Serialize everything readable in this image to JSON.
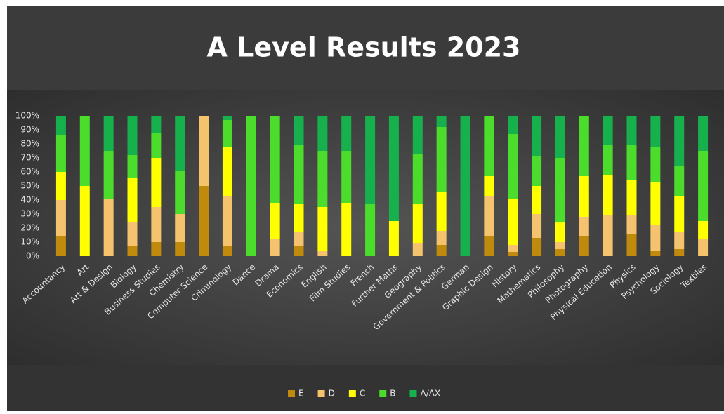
{
  "chart_data": {
    "type": "stacked_bar",
    "title": "A Level Results 2023",
    "categories": [
      "Accountancy",
      "Art",
      "Art & Design",
      "Biology",
      "Business Studies",
      "Chemistry",
      "Computer Science",
      "Criminology",
      "Dance",
      "Drama",
      "Economics",
      "English",
      "Film Studies",
      "French",
      "Further Maths",
      "Geography",
      "Government & Politics",
      "German",
      "Graphic Design",
      "History",
      "Mathematics",
      "Philosophy",
      "Photography",
      "Physical Education",
      "Physics",
      "Psychology",
      "Sociology",
      "Textiles"
    ],
    "series": [
      {
        "name": "E",
        "color": "#c08a0c",
        "values": [
          14,
          0,
          0,
          7,
          10,
          10,
          50,
          7,
          0,
          0,
          7,
          0,
          0,
          0,
          0,
          0,
          8,
          0,
          14,
          3,
          13,
          5,
          14,
          0,
          16,
          4,
          5,
          0
        ]
      },
      {
        "name": "D",
        "color": "#f5c36e",
        "values": [
          26,
          0,
          41,
          17,
          25,
          20,
          50,
          36,
          0,
          12,
          10,
          4,
          0,
          0,
          0,
          9,
          10,
          0,
          29,
          5,
          17,
          5,
          14,
          29,
          13,
          18,
          12,
          12
        ]
      },
      {
        "name": "C",
        "color": "#ffff00",
        "values": [
          20,
          50,
          0,
          32,
          35,
          0,
          0,
          35,
          0,
          26,
          20,
          31,
          38,
          0,
          25,
          28,
          28,
          0,
          14,
          33,
          20,
          14,
          29,
          29,
          25,
          31,
          26,
          13
        ]
      },
      {
        "name": "B",
        "color": "#4cdd2c",
        "values": [
          26,
          50,
          34,
          16,
          18,
          31,
          0,
          19,
          100,
          62,
          42,
          40,
          37,
          37,
          0,
          36,
          46,
          0,
          43,
          46,
          21,
          46,
          43,
          21,
          25,
          25,
          21,
          50
        ]
      },
      {
        "name": "A/AX",
        "color": "#16b04c",
        "values": [
          14,
          0,
          25,
          28,
          12,
          39,
          0,
          3,
          0,
          0,
          21,
          25,
          25,
          63,
          75,
          27,
          8,
          100,
          0,
          13,
          29,
          30,
          0,
          21,
          21,
          22,
          36,
          25
        ]
      }
    ],
    "ylim": [
      0,
      100
    ],
    "yticks": [
      {
        "value": 0,
        "label": "0%"
      },
      {
        "value": 10,
        "label": "10%"
      },
      {
        "value": 20,
        "label": "20%"
      },
      {
        "value": 30,
        "label": "30%"
      },
      {
        "value": 40,
        "label": "40%"
      },
      {
        "value": 50,
        "label": "50%"
      },
      {
        "value": 60,
        "label": "60%"
      },
      {
        "value": 70,
        "label": "70%"
      },
      {
        "value": 80,
        "label": "80%"
      },
      {
        "value": 90,
        "label": "90%"
      },
      {
        "value": 100,
        "label": "100%"
      }
    ],
    "legend": "bottom"
  }
}
